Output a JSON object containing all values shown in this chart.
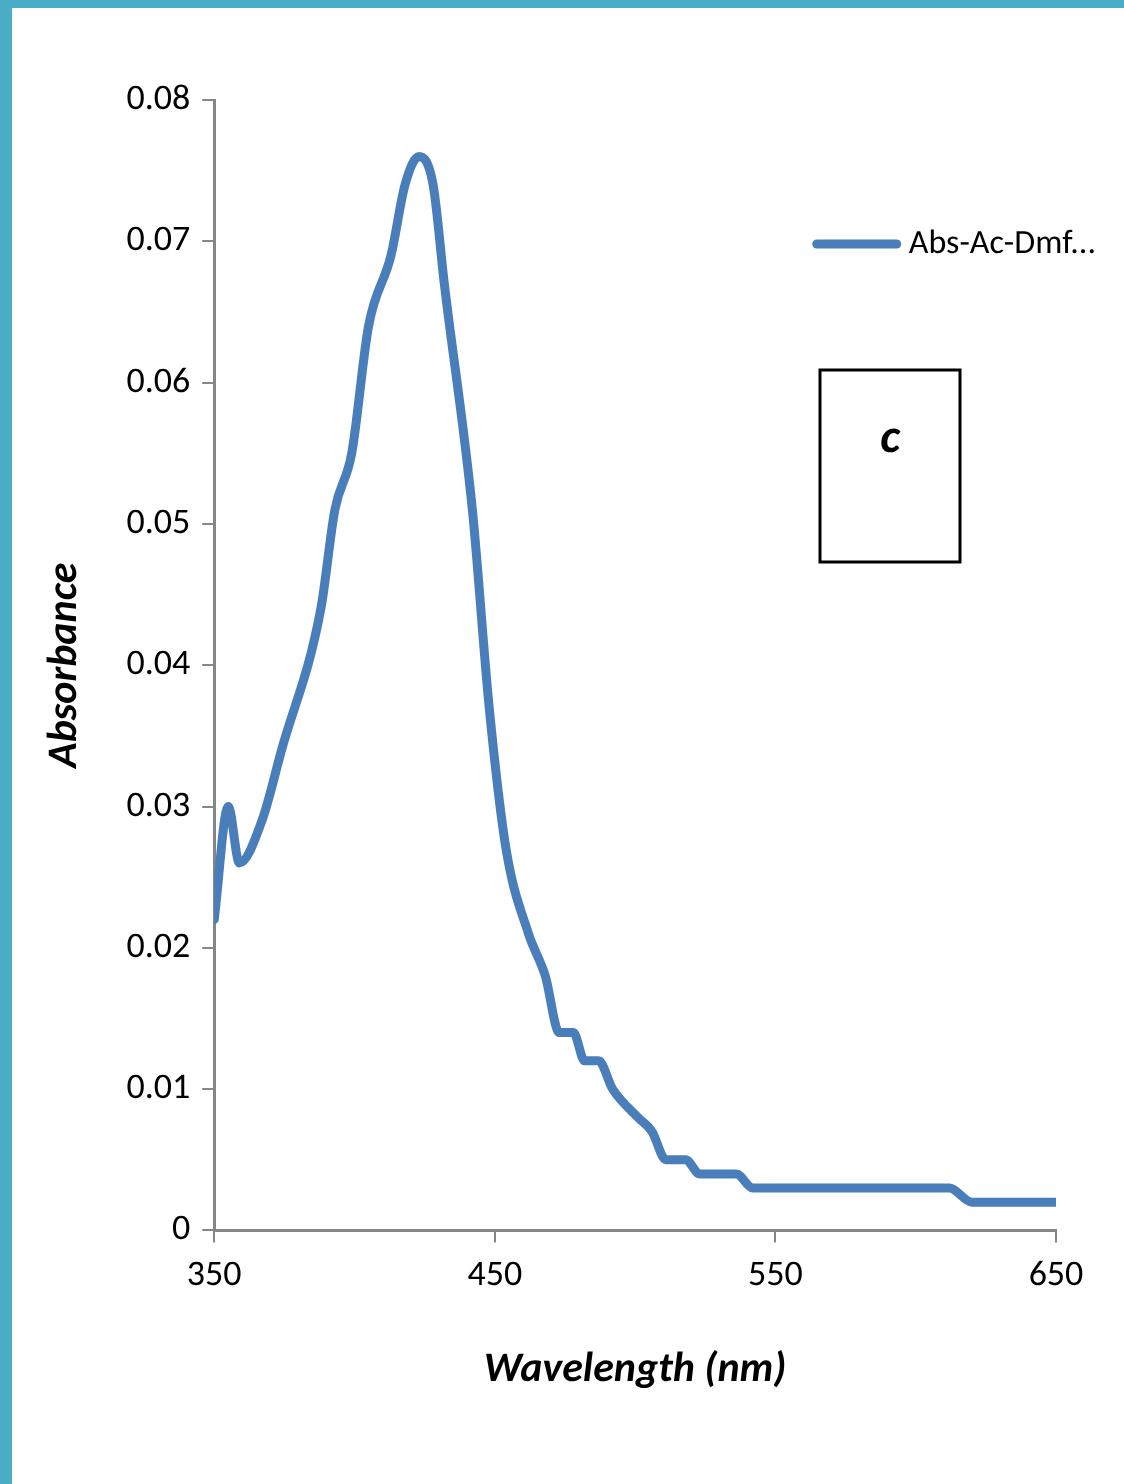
{
  "chart_data": {
    "type": "line",
    "xlabel": "Wavelength (nm)",
    "ylabel": "Absorbance",
    "x": [
      350,
      355,
      359,
      367,
      374,
      388,
      393,
      399,
      405,
      413,
      418,
      423,
      428,
      432,
      442,
      448,
      454,
      462,
      468,
      473,
      478,
      482,
      487,
      492,
      501,
      506,
      511,
      518,
      523,
      536,
      542,
      612,
      620,
      650
    ],
    "series": [
      {
        "name": "Abs-Ac-Dmf...",
        "color": "#4a7ebb",
        "values": [
          0.022,
          0.03,
          0.026,
          0.029,
          0.034,
          0.044,
          0.051,
          0.055,
          0.064,
          0.069,
          0.074,
          0.076,
          0.074,
          0.067,
          0.051,
          0.037,
          0.027,
          0.021,
          0.018,
          0.014,
          0.014,
          0.012,
          0.012,
          0.01,
          0.008,
          0.007,
          0.005,
          0.005,
          0.004,
          0.004,
          0.003,
          0.003,
          0.002,
          0.002
        ]
      }
    ],
    "xlim": [
      350,
      650
    ],
    "xticks": [
      350,
      450,
      550,
      650
    ],
    "ylim": [
      0,
      0.08
    ],
    "yticks": [
      {
        "value": 0,
        "label": "0"
      },
      0.01,
      0.02,
      0.03,
      0.04,
      0.05,
      0.06,
      0.07,
      0.08
    ],
    "grid": false,
    "legend": "top right",
    "marker": "none",
    "line_style": "solid",
    "annotations": [
      "c"
    ]
  }
}
